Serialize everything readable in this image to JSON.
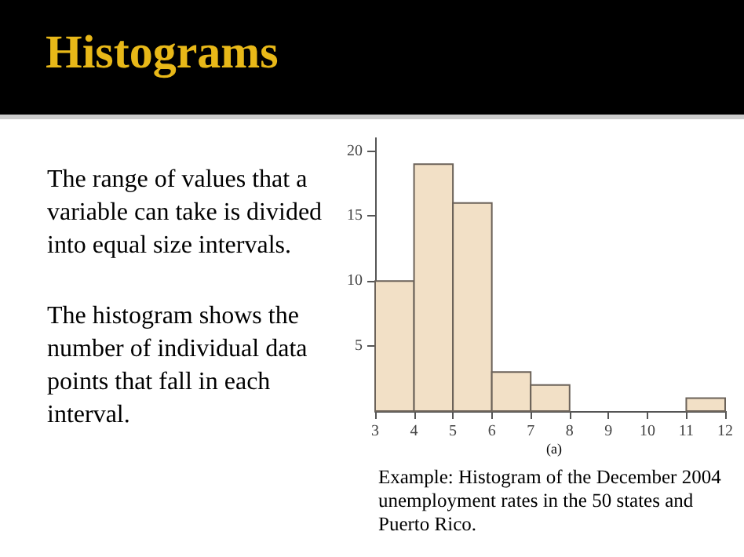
{
  "chart_data": {
    "type": "histogram",
    "title": "Histograms",
    "annotations": [
      "The range of values that a variable can take is divided into equal size intervals.",
      "The histogram shows the number of individual data points that fall in each interval.",
      "(a)",
      "Example: Histogram of the December 2004 unemployment rates in the 50 states and Puerto Rico."
    ],
    "bins": [
      3,
      4,
      5,
      6,
      7,
      8,
      9,
      10,
      11,
      12
    ],
    "values": [
      10,
      19,
      16,
      3,
      2,
      0,
      0,
      0,
      1
    ],
    "color": "#f2e0c6",
    "xlim": [
      3,
      12
    ],
    "xticks": [
      3,
      4,
      5,
      6,
      7,
      8,
      9,
      10,
      11,
      12
    ],
    "ylim": [
      0,
      21
    ],
    "yticks": [
      5,
      10,
      15,
      20
    ]
  }
}
